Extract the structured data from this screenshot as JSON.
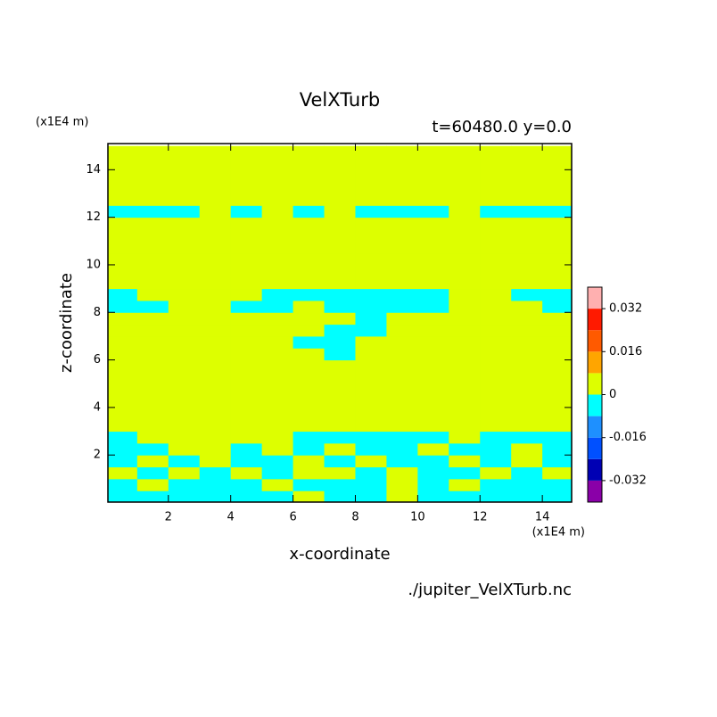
{
  "chart_data": {
    "type": "contour",
    "title": "VelXTurb",
    "subtitle": "t=60480.0 y=0.0",
    "x_label": "x-coordinate",
    "y_label": "z-coordinate",
    "x_unit": "(x1E4 m)",
    "y_unit": "(x1E4 m)",
    "source": "./jupiter_VelXTurb.nc",
    "xlim": [
      0.06,
      14.94
    ],
    "ylim": [
      0.02,
      15.1
    ],
    "xticks": [
      2,
      4,
      6,
      8,
      10,
      12,
      14
    ],
    "yticks": [
      2,
      4,
      6,
      8,
      10,
      12,
      14
    ],
    "x": [
      0.5,
      1.5,
      2.5,
      3.5,
      4.5,
      5.5,
      6.5,
      7.5,
      8.5,
      9.5,
      10.5,
      11.5,
      12.5,
      13.5,
      14.5
    ],
    "y": [
      0.25,
      0.75,
      1.25,
      1.75,
      2.25,
      2.75,
      3.25,
      3.75,
      4.25,
      4.75,
      5.25,
      5.75,
      6.25,
      6.75,
      7.25,
      7.75,
      8.25,
      8.75,
      9.25,
      9.75,
      10.25,
      10.75,
      11.25,
      11.75,
      12.25,
      12.75,
      13.25,
      13.75,
      14.25,
      14.75
    ],
    "z": [
      [
        -0.004,
        -0.004,
        -0.004,
        -0.004,
        -0.004,
        -0.004,
        0.004,
        -0.004,
        -0.004,
        0.004,
        -0.004,
        -0.004,
        -0.004,
        -0.004,
        -0.004
      ],
      [
        -0.004,
        0.004,
        -0.004,
        -0.004,
        -0.004,
        0.004,
        -0.004,
        -0.004,
        -0.004,
        0.004,
        -0.004,
        0.004,
        -0.004,
        -0.004,
        -0.004
      ],
      [
        0.004,
        -0.004,
        0.004,
        -0.004,
        0.004,
        -0.004,
        0.004,
        0.004,
        -0.004,
        0.004,
        -0.004,
        -0.004,
        0.004,
        -0.004,
        0.004
      ],
      [
        -0.004,
        0.004,
        -0.004,
        0.004,
        -0.004,
        -0.004,
        0.004,
        -0.004,
        0.004,
        -0.004,
        -0.004,
        0.004,
        -0.004,
        0.004,
        -0.004
      ],
      [
        -0.004,
        -0.004,
        0.004,
        0.004,
        -0.004,
        0.004,
        -0.004,
        0.004,
        -0.004,
        -0.004,
        0.004,
        -0.004,
        -0.004,
        0.004,
        -0.004
      ],
      [
        -0.004,
        0.004,
        0.004,
        0.004,
        0.004,
        0.004,
        -0.004,
        -0.004,
        -0.004,
        -0.004,
        -0.004,
        0.004,
        -0.004,
        -0.004,
        -0.004
      ],
      [
        0.004,
        0.004,
        0.004,
        0.004,
        0.004,
        0.004,
        0.004,
        0.004,
        0.004,
        0.004,
        0.004,
        0.004,
        0.004,
        0.004,
        0.004
      ],
      [
        0.004,
        0.004,
        0.004,
        0.004,
        0.004,
        0.004,
        0.004,
        0.004,
        0.004,
        0.004,
        0.004,
        0.004,
        0.004,
        0.004,
        0.004
      ],
      [
        0.004,
        0.004,
        0.004,
        0.004,
        0.004,
        0.004,
        0.004,
        0.004,
        0.004,
        0.004,
        0.004,
        0.004,
        0.004,
        0.004,
        0.004
      ],
      [
        0.004,
        0.004,
        0.004,
        0.004,
        0.004,
        0.004,
        0.004,
        0.004,
        0.004,
        0.004,
        0.004,
        0.004,
        0.004,
        0.004,
        0.004
      ],
      [
        0.004,
        0.004,
        0.004,
        0.004,
        0.004,
        0.004,
        0.004,
        0.004,
        0.004,
        0.004,
        0.004,
        0.004,
        0.004,
        0.004,
        0.004
      ],
      [
        0.004,
        0.004,
        0.004,
        0.004,
        0.004,
        0.004,
        0.004,
        0.004,
        0.004,
        0.004,
        0.004,
        0.004,
        0.004,
        0.004,
        0.004
      ],
      [
        0.004,
        0.004,
        0.004,
        0.004,
        0.004,
        0.004,
        0.004,
        -0.004,
        0.004,
        0.004,
        0.004,
        0.004,
        0.004,
        0.004,
        0.004
      ],
      [
        0.004,
        0.004,
        0.004,
        0.004,
        0.004,
        0.004,
        -0.004,
        -0.004,
        0.004,
        0.004,
        0.004,
        0.004,
        0.004,
        0.004,
        0.004
      ],
      [
        0.004,
        0.004,
        0.004,
        0.004,
        0.004,
        0.004,
        0.004,
        -0.004,
        -0.004,
        0.004,
        0.004,
        0.004,
        0.004,
        0.004,
        0.004
      ],
      [
        0.004,
        0.004,
        0.004,
        0.004,
        0.004,
        0.004,
        0.004,
        0.004,
        -0.004,
        0.004,
        0.004,
        0.004,
        0.004,
        0.004,
        0.004
      ],
      [
        -0.004,
        -0.004,
        0.004,
        0.004,
        -0.004,
        -0.004,
        0.004,
        -0.004,
        -0.004,
        -0.004,
        -0.004,
        0.004,
        0.004,
        0.004,
        -0.004
      ],
      [
        -0.004,
        0.004,
        0.004,
        0.004,
        0.004,
        -0.004,
        -0.004,
        -0.004,
        -0.004,
        -0.004,
        -0.004,
        0.004,
        0.004,
        -0.004,
        -0.004
      ],
      [
        0.004,
        0.004,
        0.004,
        0.004,
        0.004,
        0.004,
        0.004,
        0.004,
        0.004,
        0.004,
        0.004,
        0.004,
        0.004,
        0.004,
        0.004
      ],
      [
        0.004,
        0.004,
        0.004,
        0.004,
        0.004,
        0.004,
        0.004,
        0.004,
        0.004,
        0.004,
        0.004,
        0.004,
        0.004,
        0.004,
        0.004
      ],
      [
        0.004,
        0.004,
        0.004,
        0.004,
        0.004,
        0.004,
        0.004,
        0.004,
        0.004,
        0.004,
        0.004,
        0.004,
        0.004,
        0.004,
        0.004
      ],
      [
        0.004,
        0.004,
        0.004,
        0.004,
        0.004,
        0.004,
        0.004,
        0.004,
        0.004,
        0.004,
        0.004,
        0.004,
        0.004,
        0.004,
        0.004
      ],
      [
        0.004,
        0.004,
        0.004,
        0.004,
        0.004,
        0.004,
        0.004,
        0.004,
        0.004,
        0.004,
        0.004,
        0.004,
        0.004,
        0.004,
        0.004
      ],
      [
        0.004,
        0.004,
        0.004,
        0.004,
        0.004,
        0.004,
        0.004,
        0.004,
        0.004,
        0.004,
        0.004,
        0.004,
        0.004,
        0.004,
        0.004
      ],
      [
        -0.004,
        -0.004,
        -0.004,
        0.004,
        -0.004,
        0.004,
        -0.004,
        0.004,
        -0.004,
        -0.004,
        -0.004,
        0.004,
        -0.004,
        -0.004,
        -0.004
      ],
      [
        0.004,
        0.004,
        0.004,
        0.004,
        0.004,
        0.004,
        0.004,
        0.004,
        0.004,
        0.004,
        0.004,
        0.004,
        0.004,
        0.004,
        0.004
      ],
      [
        0.004,
        0.004,
        0.004,
        0.004,
        0.004,
        0.004,
        0.004,
        0.004,
        0.004,
        0.004,
        0.004,
        0.004,
        0.004,
        0.004,
        0.004
      ],
      [
        0.004,
        0.004,
        0.004,
        0.004,
        0.004,
        0.004,
        0.004,
        0.004,
        0.004,
        0.004,
        0.004,
        0.004,
        0.004,
        0.004,
        0.004
      ],
      [
        0.004,
        0.004,
        0.004,
        0.004,
        0.004,
        0.004,
        0.004,
        0.004,
        0.004,
        0.004,
        0.004,
        0.004,
        0.004,
        0.004,
        0.004
      ],
      [
        0.004,
        0.004,
        0.004,
        0.004,
        0.004,
        0.004,
        0.004,
        0.004,
        0.004,
        0.004,
        0.004,
        0.004,
        0.004,
        0.004,
        0.004
      ]
    ],
    "levels": [
      -0.04,
      -0.032,
      -0.024,
      -0.016,
      -0.008,
      0,
      0.008,
      0.016,
      0.024,
      0.032,
      0.04
    ],
    "colors": [
      "#8a00a8",
      "#0000b4",
      "#0050ff",
      "#1e90ff",
      "#00ffff",
      "#ddff00",
      "#ffa500",
      "#ff5a00",
      "#ff1a00",
      "#ffb0b0"
    ],
    "cbticks": [
      0.032,
      0.016,
      0,
      -0.016,
      -0.032
    ]
  }
}
